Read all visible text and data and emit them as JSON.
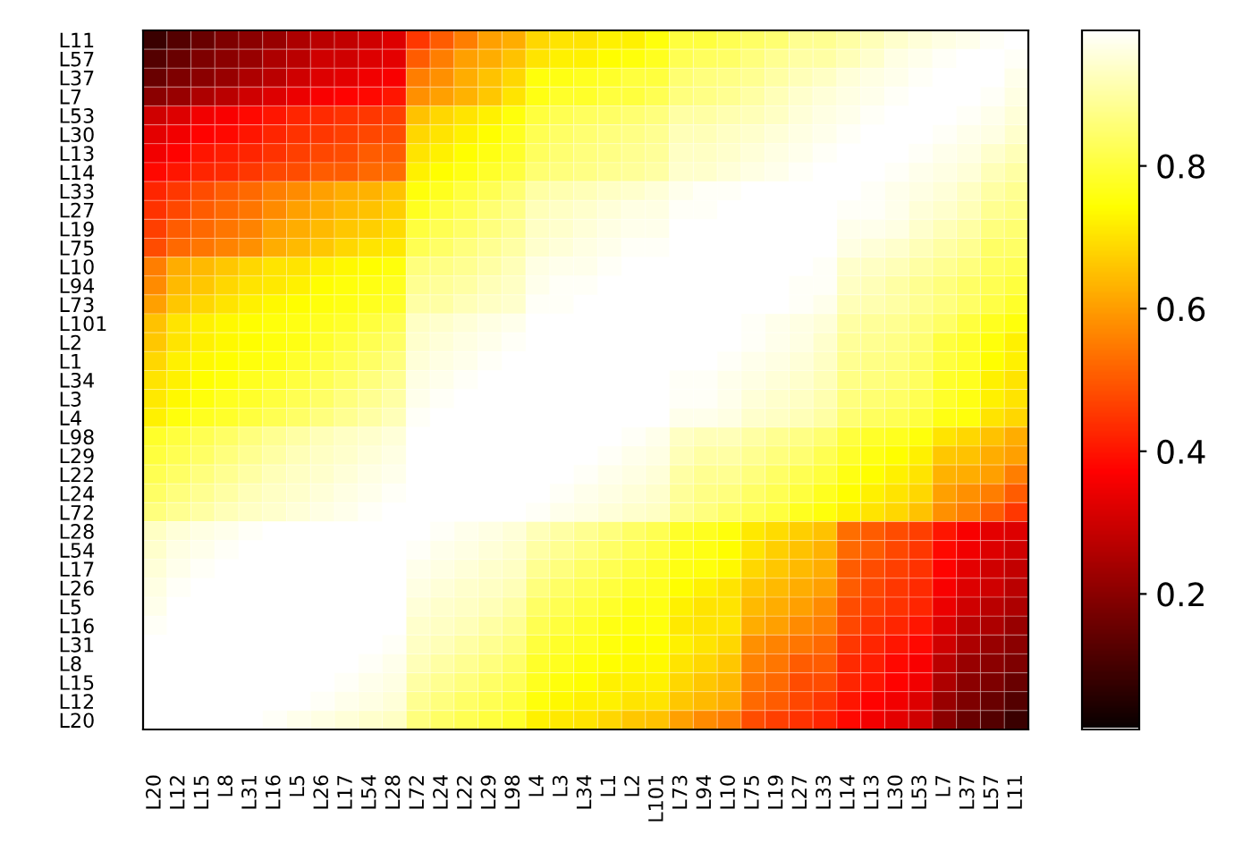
{
  "chart_data": {
    "type": "heatmap",
    "categories": [
      "L20",
      "L12",
      "L15",
      "L8",
      "L31",
      "L16",
      "L5",
      "L26",
      "L17",
      "L54",
      "L28",
      "L72",
      "L24",
      "L22",
      "L29",
      "L98",
      "L4",
      "L3",
      "L34",
      "L1",
      "L2",
      "L101",
      "L73",
      "L94",
      "L10",
      "L75",
      "L19",
      "L27",
      "L33",
      "L14",
      "L13",
      "L30",
      "L53",
      "L7",
      "L37",
      "L57",
      "L11"
    ],
    "y_categories": [
      "L11",
      "L57",
      "L37",
      "L7",
      "L53",
      "L30",
      "L13",
      "L14",
      "L33",
      "L27",
      "L19",
      "L75",
      "L10",
      "L94",
      "L73",
      "L101",
      "L2",
      "L1",
      "L34",
      "L3",
      "L4",
      "L98",
      "L29",
      "L22",
      "L24",
      "L72",
      "L28",
      "L54",
      "L17",
      "L26",
      "L5",
      "L16",
      "L31",
      "L8",
      "L15",
      "L12",
      "L20"
    ],
    "cells": [
      [
        0.08,
        0.12,
        0.15,
        0.18,
        0.2,
        0.22,
        0.25,
        0.27,
        0.28,
        0.3,
        0.32,
        0.45,
        0.5,
        0.55,
        0.6,
        0.62,
        0.68,
        0.7,
        0.7,
        0.72,
        0.72,
        0.75,
        0.8,
        0.8,
        0.82,
        0.84,
        0.85,
        0.88,
        0.88,
        0.9,
        0.92,
        0.94,
        0.95,
        0.96,
        0.97,
        0.98,
        1
      ],
      [
        0.12,
        0.15,
        0.18,
        0.2,
        0.22,
        0.25,
        0.27,
        0.3,
        0.3,
        0.32,
        0.33,
        0.5,
        0.55,
        0.6,
        0.62,
        0.65,
        0.7,
        0.72,
        0.72,
        0.74,
        0.75,
        0.77,
        0.82,
        0.83,
        0.84,
        0.86,
        0.88,
        0.9,
        0.9,
        0.92,
        0.94,
        0.96,
        0.97,
        0.98,
        0.99,
        1,
        0.98
      ],
      [
        0.15,
        0.18,
        0.2,
        0.22,
        0.25,
        0.27,
        0.3,
        0.32,
        0.33,
        0.35,
        0.36,
        0.55,
        0.58,
        0.62,
        0.65,
        0.68,
        0.75,
        0.76,
        0.77,
        0.78,
        0.8,
        0.8,
        0.85,
        0.86,
        0.87,
        0.88,
        0.9,
        0.92,
        0.93,
        0.95,
        0.96,
        0.97,
        0.98,
        0.99,
        1,
        0.99,
        0.97
      ],
      [
        0.2,
        0.22,
        0.25,
        0.27,
        0.3,
        0.32,
        0.34,
        0.36,
        0.37,
        0.38,
        0.4,
        0.58,
        0.6,
        0.63,
        0.66,
        0.7,
        0.76,
        0.78,
        0.78,
        0.8,
        0.8,
        0.82,
        0.86,
        0.87,
        0.88,
        0.9,
        0.92,
        0.94,
        0.95,
        0.96,
        0.97,
        0.98,
        0.99,
        1,
        0.99,
        0.98,
        0.96
      ],
      [
        0.3,
        0.32,
        0.35,
        0.36,
        0.38,
        0.4,
        0.42,
        0.43,
        0.44,
        0.45,
        0.46,
        0.65,
        0.68,
        0.7,
        0.72,
        0.75,
        0.8,
        0.82,
        0.83,
        0.84,
        0.85,
        0.86,
        0.9,
        0.9,
        0.91,
        0.92,
        0.93,
        0.95,
        0.96,
        0.97,
        0.98,
        0.99,
        1,
        0.99,
        0.98,
        0.97,
        0.95
      ],
      [
        0.33,
        0.35,
        0.37,
        0.38,
        0.4,
        0.42,
        0.44,
        0.45,
        0.46,
        0.47,
        0.48,
        0.68,
        0.7,
        0.72,
        0.74,
        0.77,
        0.82,
        0.84,
        0.85,
        0.86,
        0.87,
        0.88,
        0.92,
        0.92,
        0.93,
        0.94,
        0.95,
        0.96,
        0.97,
        0.98,
        0.99,
        1,
        0.99,
        0.98,
        0.97,
        0.96,
        0.94
      ],
      [
        0.35,
        0.37,
        0.4,
        0.41,
        0.42,
        0.44,
        0.46,
        0.47,
        0.48,
        0.5,
        0.5,
        0.7,
        0.72,
        0.74,
        0.76,
        0.78,
        0.83,
        0.85,
        0.86,
        0.87,
        0.88,
        0.89,
        0.93,
        0.93,
        0.94,
        0.95,
        0.96,
        0.97,
        0.98,
        0.99,
        1,
        0.99,
        0.98,
        0.97,
        0.96,
        0.94,
        0.92
      ],
      [
        0.38,
        0.4,
        0.42,
        0.43,
        0.45,
        0.47,
        0.48,
        0.5,
        0.5,
        0.52,
        0.53,
        0.72,
        0.74,
        0.76,
        0.78,
        0.8,
        0.85,
        0.86,
        0.87,
        0.88,
        0.89,
        0.9,
        0.94,
        0.94,
        0.95,
        0.96,
        0.97,
        0.98,
        0.99,
        1,
        0.99,
        0.98,
        0.97,
        0.96,
        0.95,
        0.92,
        0.9
      ],
      [
        0.42,
        0.45,
        0.48,
        0.5,
        0.52,
        0.55,
        0.57,
        0.6,
        0.62,
        0.63,
        0.65,
        0.75,
        0.77,
        0.8,
        0.82,
        0.85,
        0.9,
        0.91,
        0.92,
        0.93,
        0.94,
        0.95,
        0.97,
        0.98,
        0.98,
        0.99,
        0.99,
        1,
        1,
        0.99,
        0.98,
        0.97,
        0.96,
        0.95,
        0.93,
        0.9,
        0.88
      ],
      [
        0.44,
        0.47,
        0.5,
        0.52,
        0.54,
        0.57,
        0.6,
        0.62,
        0.64,
        0.65,
        0.67,
        0.77,
        0.8,
        0.82,
        0.85,
        0.87,
        0.92,
        0.93,
        0.94,
        0.95,
        0.96,
        0.96,
        0.98,
        0.98,
        0.99,
        0.99,
        1,
        1,
        1,
        0.98,
        0.98,
        0.97,
        0.95,
        0.94,
        0.92,
        0.88,
        0.87
      ],
      [
        0.46,
        0.5,
        0.52,
        0.54,
        0.56,
        0.6,
        0.62,
        0.64,
        0.66,
        0.67,
        0.69,
        0.8,
        0.82,
        0.84,
        0.86,
        0.88,
        0.93,
        0.94,
        0.95,
        0.96,
        0.97,
        0.97,
        0.99,
        0.99,
        1,
        1,
        1,
        1,
        0.99,
        0.97,
        0.97,
        0.96,
        0.94,
        0.92,
        0.9,
        0.86,
        0.85
      ],
      [
        0.48,
        0.52,
        0.54,
        0.56,
        0.58,
        0.62,
        0.64,
        0.66,
        0.68,
        0.7,
        0.71,
        0.82,
        0.84,
        0.86,
        0.88,
        0.9,
        0.94,
        0.95,
        0.96,
        0.97,
        0.98,
        0.98,
        0.99,
        1,
        1,
        1,
        1,
        0.99,
        0.99,
        0.96,
        0.95,
        0.94,
        0.92,
        0.9,
        0.88,
        0.84,
        0.84
      ],
      [
        0.55,
        0.62,
        0.64,
        0.66,
        0.68,
        0.7,
        0.7,
        0.72,
        0.73,
        0.74,
        0.75,
        0.86,
        0.87,
        0.88,
        0.9,
        0.92,
        0.96,
        0.97,
        0.97,
        0.98,
        0.99,
        0.99,
        1,
        1,
        1,
        1,
        1,
        0.99,
        0.98,
        0.94,
        0.93,
        0.92,
        0.9,
        0.88,
        0.86,
        0.83,
        0.82
      ],
      [
        0.57,
        0.64,
        0.66,
        0.68,
        0.7,
        0.71,
        0.72,
        0.74,
        0.75,
        0.76,
        0.77,
        0.88,
        0.89,
        0.9,
        0.92,
        0.93,
        0.97,
        0.98,
        0.98,
        0.99,
        0.99,
        1,
        1,
        1,
        1,
        1,
        0.99,
        0.98,
        0.98,
        0.93,
        0.92,
        0.9,
        0.88,
        0.86,
        0.84,
        0.82,
        0.8
      ],
      [
        0.6,
        0.66,
        0.68,
        0.7,
        0.72,
        0.73,
        0.74,
        0.75,
        0.76,
        0.77,
        0.78,
        0.9,
        0.9,
        0.92,
        0.93,
        0.94,
        0.98,
        0.98,
        0.99,
        0.99,
        1,
        1,
        1,
        1,
        0.99,
        0.99,
        0.99,
        0.98,
        0.97,
        0.92,
        0.91,
        0.9,
        0.88,
        0.86,
        0.84,
        0.81,
        0.78
      ],
      [
        0.65,
        0.7,
        0.72,
        0.73,
        0.74,
        0.75,
        0.76,
        0.77,
        0.78,
        0.8,
        0.82,
        0.93,
        0.94,
        0.95,
        0.96,
        0.97,
        1,
        1,
        1,
        1,
        1,
        1,
        1,
        1,
        0.99,
        0.98,
        0.97,
        0.96,
        0.95,
        0.9,
        0.89,
        0.88,
        0.86,
        0.84,
        0.8,
        0.77,
        0.75
      ],
      [
        0.66,
        0.7,
        0.72,
        0.73,
        0.74,
        0.75,
        0.76,
        0.78,
        0.8,
        0.82,
        0.84,
        0.94,
        0.95,
        0.96,
        0.97,
        0.98,
        1,
        1,
        1,
        1,
        1,
        1,
        1,
        0.99,
        0.99,
        0.98,
        0.97,
        0.96,
        0.94,
        0.89,
        0.88,
        0.87,
        0.85,
        0.8,
        0.78,
        0.75,
        0.72
      ],
      [
        0.68,
        0.72,
        0.73,
        0.74,
        0.75,
        0.76,
        0.78,
        0.8,
        0.82,
        0.84,
        0.86,
        0.95,
        0.96,
        0.97,
        0.98,
        0.99,
        1,
        1,
        1,
        1,
        1,
        1,
        0.99,
        0.99,
        0.98,
        0.97,
        0.96,
        0.95,
        0.93,
        0.88,
        0.87,
        0.86,
        0.84,
        0.8,
        0.78,
        0.74,
        0.72
      ],
      [
        0.7,
        0.72,
        0.74,
        0.75,
        0.77,
        0.78,
        0.8,
        0.82,
        0.84,
        0.86,
        0.88,
        0.96,
        0.97,
        0.98,
        0.99,
        1,
        1,
        1,
        1,
        1,
        1,
        1,
        0.98,
        0.98,
        0.97,
        0.96,
        0.95,
        0.94,
        0.92,
        0.87,
        0.86,
        0.85,
        0.83,
        0.78,
        0.77,
        0.72,
        0.7
      ],
      [
        0.71,
        0.73,
        0.75,
        0.77,
        0.78,
        0.8,
        0.82,
        0.84,
        0.86,
        0.88,
        0.9,
        0.97,
        0.98,
        0.99,
        1,
        1,
        1,
        1,
        1,
        1,
        1,
        1,
        0.98,
        0.98,
        0.97,
        0.95,
        0.94,
        0.93,
        0.91,
        0.86,
        0.85,
        0.84,
        0.82,
        0.78,
        0.76,
        0.72,
        0.7
      ],
      [
        0.72,
        0.75,
        0.77,
        0.78,
        0.8,
        0.82,
        0.84,
        0.86,
        0.88,
        0.9,
        0.92,
        0.98,
        0.99,
        1,
        1,
        1,
        1,
        1,
        1,
        1,
        1,
        1,
        0.97,
        0.97,
        0.96,
        0.94,
        0.93,
        0.92,
        0.9,
        0.85,
        0.83,
        0.82,
        0.8,
        0.76,
        0.75,
        0.7,
        0.68
      ],
      [
        0.78,
        0.8,
        0.82,
        0.84,
        0.86,
        0.88,
        0.9,
        0.92,
        0.93,
        0.94,
        0.95,
        0.99,
        1,
        1,
        1,
        1,
        1,
        1,
        1,
        0.99,
        0.98,
        0.97,
        0.93,
        0.92,
        0.92,
        0.9,
        0.88,
        0.87,
        0.85,
        0.8,
        0.78,
        0.77,
        0.75,
        0.7,
        0.68,
        0.65,
        0.62
      ],
      [
        0.8,
        0.82,
        0.84,
        0.86,
        0.88,
        0.9,
        0.92,
        0.93,
        0.94,
        0.95,
        0.96,
        1,
        1,
        1,
        1,
        1,
        1,
        1,
        0.99,
        0.98,
        0.97,
        0.96,
        0.92,
        0.9,
        0.9,
        0.88,
        0.86,
        0.85,
        0.82,
        0.78,
        0.76,
        0.74,
        0.72,
        0.66,
        0.65,
        0.62,
        0.6
      ],
      [
        0.82,
        0.84,
        0.86,
        0.88,
        0.9,
        0.92,
        0.93,
        0.94,
        0.95,
        0.96,
        0.97,
        1,
        1,
        1,
        1,
        1,
        1,
        0.99,
        0.98,
        0.97,
        0.96,
        0.95,
        0.9,
        0.88,
        0.88,
        0.86,
        0.84,
        0.82,
        0.8,
        0.76,
        0.74,
        0.72,
        0.7,
        0.63,
        0.62,
        0.6,
        0.55
      ],
      [
        0.84,
        0.86,
        0.88,
        0.9,
        0.92,
        0.93,
        0.94,
        0.95,
        0.96,
        0.97,
        0.98,
        1,
        1,
        1,
        1,
        1,
        0.99,
        0.98,
        0.97,
        0.96,
        0.95,
        0.94,
        0.89,
        0.87,
        0.86,
        0.84,
        0.82,
        0.8,
        0.77,
        0.74,
        0.72,
        0.7,
        0.68,
        0.6,
        0.58,
        0.55,
        0.5
      ],
      [
        0.86,
        0.88,
        0.9,
        0.92,
        0.93,
        0.94,
        0.95,
        0.96,
        0.97,
        0.98,
        0.99,
        1,
        1,
        1,
        1,
        0.99,
        0.98,
        0.97,
        0.96,
        0.95,
        0.94,
        0.93,
        0.88,
        0.86,
        0.84,
        0.82,
        0.8,
        0.77,
        0.75,
        0.72,
        0.7,
        0.68,
        0.65,
        0.58,
        0.55,
        0.5,
        0.45
      ],
      [
        0.93,
        0.95,
        0.96,
        0.97,
        0.98,
        0.99,
        1,
        1,
        1,
        1,
        1,
        0.99,
        0.98,
        0.97,
        0.96,
        0.95,
        0.92,
        0.9,
        0.88,
        0.86,
        0.84,
        0.82,
        0.78,
        0.77,
        0.75,
        0.71,
        0.69,
        0.67,
        0.65,
        0.53,
        0.5,
        0.48,
        0.46,
        0.4,
        0.36,
        0.33,
        0.32
      ],
      [
        0.94,
        0.96,
        0.97,
        0.98,
        0.99,
        1,
        1,
        1,
        1,
        1,
        1,
        0.98,
        0.97,
        0.96,
        0.95,
        0.94,
        0.9,
        0.88,
        0.86,
        0.84,
        0.82,
        0.8,
        0.77,
        0.76,
        0.74,
        0.7,
        0.67,
        0.65,
        0.63,
        0.52,
        0.5,
        0.47,
        0.45,
        0.38,
        0.35,
        0.32,
        0.3
      ],
      [
        0.95,
        0.97,
        0.98,
        0.99,
        1,
        1,
        1,
        1,
        1,
        1,
        1,
        0.97,
        0.96,
        0.95,
        0.94,
        0.93,
        0.88,
        0.86,
        0.84,
        0.82,
        0.8,
        0.78,
        0.76,
        0.75,
        0.73,
        0.68,
        0.66,
        0.64,
        0.62,
        0.5,
        0.48,
        0.46,
        0.44,
        0.37,
        0.33,
        0.3,
        0.28
      ],
      [
        0.96,
        0.98,
        0.99,
        1,
        1,
        1,
        1,
        1,
        1,
        1,
        1,
        0.96,
        0.95,
        0.94,
        0.93,
        0.92,
        0.86,
        0.84,
        0.82,
        0.8,
        0.78,
        0.77,
        0.74,
        0.72,
        0.7,
        0.66,
        0.64,
        0.62,
        0.6,
        0.5,
        0.47,
        0.45,
        0.43,
        0.36,
        0.32,
        0.3,
        0.27
      ],
      [
        0.97,
        0.99,
        1,
        1,
        1,
        1,
        1,
        1,
        1,
        1,
        1,
        0.95,
        0.94,
        0.93,
        0.92,
        0.9,
        0.84,
        0.82,
        0.8,
        0.78,
        0.76,
        0.76,
        0.72,
        0.7,
        0.7,
        0.64,
        0.62,
        0.6,
        0.57,
        0.48,
        0.46,
        0.44,
        0.42,
        0.34,
        0.3,
        0.27,
        0.25
      ],
      [
        0.98,
        1,
        1,
        1,
        1,
        1,
        1,
        1,
        1,
        0.99,
        0.99,
        0.94,
        0.93,
        0.92,
        0.9,
        0.88,
        0.82,
        0.8,
        0.78,
        0.76,
        0.75,
        0.75,
        0.71,
        0.7,
        0.7,
        0.62,
        0.6,
        0.57,
        0.55,
        0.47,
        0.44,
        0.42,
        0.4,
        0.32,
        0.27,
        0.25,
        0.22
      ],
      [
        0.99,
        1,
        1,
        1,
        1,
        1,
        1,
        1,
        0.99,
        0.99,
        0.98,
        0.93,
        0.92,
        0.9,
        0.88,
        0.86,
        0.8,
        0.78,
        0.77,
        0.75,
        0.74,
        0.74,
        0.72,
        0.7,
        0.68,
        0.58,
        0.56,
        0.54,
        0.52,
        0.45,
        0.42,
        0.4,
        0.38,
        0.3,
        0.25,
        0.22,
        0.2
      ],
      [
        1,
        1,
        1,
        1,
        1,
        1,
        1,
        1,
        0.99,
        0.98,
        0.97,
        0.92,
        0.9,
        0.88,
        0.86,
        0.84,
        0.78,
        0.77,
        0.75,
        0.74,
        0.73,
        0.73,
        0.7,
        0.68,
        0.66,
        0.56,
        0.54,
        0.5,
        0.5,
        0.43,
        0.41,
        0.38,
        0.36,
        0.27,
        0.22,
        0.2,
        0.18
      ],
      [
        1,
        1,
        1,
        1,
        1,
        1,
        1,
        0.99,
        0.98,
        0.97,
        0.96,
        0.9,
        0.88,
        0.86,
        0.84,
        0.82,
        0.77,
        0.75,
        0.74,
        0.72,
        0.72,
        0.72,
        0.68,
        0.66,
        0.64,
        0.54,
        0.52,
        0.48,
        0.48,
        0.42,
        0.4,
        0.37,
        0.35,
        0.25,
        0.2,
        0.18,
        0.15
      ],
      [
        1,
        1,
        1,
        1,
        1,
        1,
        0.99,
        0.98,
        0.97,
        0.96,
        0.95,
        0.88,
        0.86,
        0.84,
        0.82,
        0.8,
        0.75,
        0.73,
        0.72,
        0.72,
        0.7,
        0.7,
        0.66,
        0.64,
        0.62,
        0.52,
        0.5,
        0.47,
        0.45,
        0.4,
        0.37,
        0.35,
        0.32,
        0.22,
        0.18,
        0.15,
        0.12
      ],
      [
        1,
        1,
        1,
        1,
        0.99,
        0.98,
        0.97,
        0.96,
        0.95,
        0.94,
        0.93,
        0.86,
        0.84,
        0.82,
        0.8,
        0.78,
        0.72,
        0.71,
        0.7,
        0.68,
        0.66,
        0.65,
        0.6,
        0.57,
        0.55,
        0.48,
        0.46,
        0.44,
        0.42,
        0.38,
        0.35,
        0.33,
        0.3,
        0.2,
        0.15,
        0.12,
        0.08
      ]
    ],
    "clim": [
      0.01,
      0.99
    ],
    "cticks": [
      0.2,
      0.4,
      0.6,
      0.8
    ]
  }
}
